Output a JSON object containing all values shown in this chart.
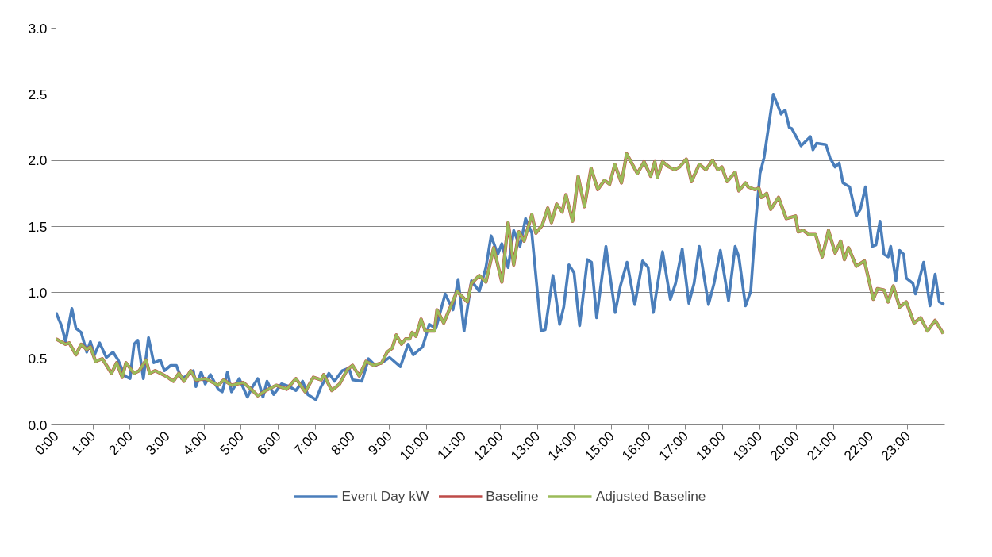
{
  "chart_data": {
    "type": "line",
    "xlim": [
      0,
      24
    ],
    "ylim": [
      0,
      3
    ],
    "xticks": [
      {
        "value": 0,
        "label": "0:00"
      },
      {
        "value": 1,
        "label": "1:00"
      },
      {
        "value": 2,
        "label": "2:00"
      },
      {
        "value": 3,
        "label": "3:00"
      },
      {
        "value": 4,
        "label": "4:00"
      },
      {
        "value": 5,
        "label": "5:00"
      },
      {
        "value": 6,
        "label": "6:00"
      },
      {
        "value": 7,
        "label": "7:00"
      },
      {
        "value": 8,
        "label": "8:00"
      },
      {
        "value": 9,
        "label": "9:00"
      },
      {
        "value": 10,
        "label": "10:00"
      },
      {
        "value": 11,
        "label": "11:00"
      },
      {
        "value": 12,
        "label": "12:00"
      },
      {
        "value": 13,
        "label": "13:00"
      },
      {
        "value": 14,
        "label": "14:00"
      },
      {
        "value": 15,
        "label": "15:00"
      },
      {
        "value": 16,
        "label": "16:00"
      },
      {
        "value": 17,
        "label": "17:00"
      },
      {
        "value": 18,
        "label": "18:00"
      },
      {
        "value": 19,
        "label": "19:00"
      },
      {
        "value": 20,
        "label": "20:00"
      },
      {
        "value": 21,
        "label": "21:00"
      },
      {
        "value": 22,
        "label": "22:00"
      },
      {
        "value": 23,
        "label": "23:00"
      }
    ],
    "yticks": [
      {
        "value": 0,
        "label": "0.0"
      },
      {
        "value": 0.5,
        "label": "0.5"
      },
      {
        "value": 1,
        "label": "1.0"
      },
      {
        "value": 1.5,
        "label": "1.5"
      },
      {
        "value": 2,
        "label": "2.0"
      },
      {
        "value": 2.5,
        "label": "2.5"
      },
      {
        "value": 3,
        "label": "3.0"
      }
    ],
    "grid": "y",
    "legend": "bottom",
    "marker": "none",
    "line_style": "solid",
    "series": [
      {
        "name": "Event Day kW",
        "color": "#4a7ebb",
        "x": [
          0,
          0.15,
          0.26,
          0.43,
          0.54,
          0.68,
          0.83,
          0.93,
          1.04,
          1.18,
          1.36,
          1.54,
          1.68,
          1.86,
          2.0,
          2.11,
          2.21,
          2.36,
          2.5,
          2.64,
          2.82,
          2.93,
          3.1,
          3.25,
          3.39,
          3.53,
          3.71,
          3.78,
          3.92,
          4.03,
          4.17,
          4.38,
          4.49,
          4.63,
          4.74,
          4.95,
          5.17,
          5.31,
          5.45,
          5.59,
          5.7,
          5.88,
          6.09,
          6.31,
          6.48,
          6.66,
          6.8,
          7.02,
          7.16,
          7.37,
          7.52,
          7.73,
          7.91,
          8.01,
          8.26,
          8.44,
          8.62,
          8.8,
          9.01,
          9.3,
          9.51,
          9.65,
          9.9,
          10.08,
          10.26,
          10.51,
          10.72,
          10.86,
          11.02,
          11.22,
          11.43,
          11.61,
          11.75,
          11.93,
          12.04,
          12.21,
          12.36,
          12.53,
          12.68,
          12.85,
          13.1,
          13.21,
          13.42,
          13.6,
          13.71,
          13.85,
          13.99,
          14.14,
          14.35,
          14.46,
          14.6,
          14.85,
          15.1,
          15.24,
          15.42,
          15.63,
          15.84,
          15.99,
          16.13,
          16.38,
          16.59,
          16.73,
          16.91,
          17.09,
          17.23,
          17.37,
          17.62,
          17.77,
          17.94,
          18.16,
          18.34,
          18.44,
          18.62,
          18.76,
          18.9,
          19.01,
          19.12,
          19.37,
          19.58,
          19.69,
          19.8,
          19.87,
          20.12,
          20.37,
          20.44,
          20.54,
          20.79,
          20.9,
          21.04,
          21.15,
          21.25,
          21.43,
          21.61,
          21.72,
          21.86,
          22.04,
          22.14,
          22.25,
          22.36,
          22.47,
          22.54,
          22.68,
          22.78,
          22.89,
          22.96,
          23.14,
          23.21,
          23.43,
          23.6,
          23.74,
          23.85,
          23.99
        ],
        "values": [
          0.85,
          0.75,
          0.63,
          0.88,
          0.73,
          0.7,
          0.55,
          0.63,
          0.53,
          0.62,
          0.51,
          0.55,
          0.49,
          0.37,
          0.35,
          0.61,
          0.64,
          0.35,
          0.66,
          0.47,
          0.49,
          0.41,
          0.45,
          0.45,
          0.35,
          0.37,
          0.41,
          0.29,
          0.4,
          0.31,
          0.38,
          0.27,
          0.25,
          0.4,
          0.25,
          0.35,
          0.21,
          0.29,
          0.35,
          0.21,
          0.33,
          0.23,
          0.31,
          0.29,
          0.26,
          0.33,
          0.23,
          0.19,
          0.29,
          0.39,
          0.33,
          0.41,
          0.43,
          0.34,
          0.33,
          0.5,
          0.45,
          0.47,
          0.51,
          0.44,
          0.61,
          0.53,
          0.59,
          0.76,
          0.73,
          0.99,
          0.87,
          1.1,
          0.71,
          1.09,
          1.01,
          1.19,
          1.43,
          1.29,
          1.37,
          1.19,
          1.47,
          1.35,
          1.56,
          1.45,
          0.71,
          0.72,
          1.13,
          0.76,
          0.89,
          1.21,
          1.15,
          0.75,
          1.25,
          1.23,
          0.81,
          1.35,
          0.85,
          1.05,
          1.23,
          0.91,
          1.24,
          1.19,
          0.85,
          1.31,
          0.95,
          1.07,
          1.33,
          0.92,
          1.07,
          1.35,
          0.91,
          1.07,
          1.32,
          0.94,
          1.35,
          1.27,
          0.9,
          1.01,
          1.55,
          1.9,
          2.02,
          2.5,
          2.35,
          2.38,
          2.25,
          2.24,
          2.11,
          2.18,
          2.08,
          2.13,
          2.12,
          2.02,
          1.95,
          1.98,
          1.83,
          1.8,
          1.58,
          1.63,
          1.8,
          1.35,
          1.36,
          1.54,
          1.29,
          1.27,
          1.35,
          1.09,
          1.32,
          1.29,
          1.11,
          1.07,
          0.99,
          1.23,
          0.9,
          1.14,
          0.93,
          0.91
        ]
      },
      {
        "name": "Baseline",
        "color": "#be4b48",
        "x": [
          0,
          0.26,
          0.36,
          0.54,
          0.68,
          0.83,
          0.93,
          1.07,
          1.25,
          1.5,
          1.64,
          1.79,
          1.89,
          2.11,
          2.25,
          2.43,
          2.53,
          2.68,
          2.96,
          3.17,
          3.32,
          3.46,
          3.64,
          3.78,
          4.03,
          4.38,
          4.53,
          4.74,
          5.06,
          5.31,
          5.45,
          5.67,
          5.95,
          6.23,
          6.48,
          6.73,
          6.95,
          7.16,
          7.23,
          7.45,
          7.66,
          7.87,
          8.01,
          8.19,
          8.37,
          8.58,
          8.8,
          8.94,
          9.08,
          9.19,
          9.33,
          9.44,
          9.55,
          9.62,
          9.72,
          9.86,
          9.97,
          10.22,
          10.29,
          10.47,
          10.83,
          11.11,
          11.22,
          11.43,
          11.61,
          11.82,
          12.04,
          12.21,
          12.36,
          12.5,
          12.64,
          12.85,
          12.96,
          13.13,
          13.28,
          13.38,
          13.52,
          13.67,
          13.77,
          13.95,
          14.1,
          14.27,
          14.45,
          14.63,
          14.81,
          14.95,
          15.09,
          15.27,
          15.41,
          15.7,
          15.88,
          16.06,
          16.17,
          16.24,
          16.38,
          16.56,
          16.7,
          16.84,
          17.02,
          17.16,
          17.37,
          17.55,
          17.73,
          17.87,
          17.98,
          18.12,
          18.34,
          18.44,
          18.62,
          18.69,
          18.87,
          18.98,
          19.05,
          19.19,
          19.3,
          19.51,
          19.72,
          19.97,
          20.04,
          20.18,
          20.33,
          20.51,
          20.69,
          20.86,
          21.04,
          21.19,
          21.29,
          21.4,
          21.61,
          21.83,
          22.07,
          22.18,
          22.36,
          22.47,
          22.61,
          22.78,
          22.96,
          23.17,
          23.35,
          23.53,
          23.74,
          23.96
        ],
        "values": [
          0.65,
          0.61,
          0.62,
          0.53,
          0.61,
          0.57,
          0.59,
          0.48,
          0.5,
          0.39,
          0.47,
          0.36,
          0.47,
          0.39,
          0.41,
          0.49,
          0.39,
          0.41,
          0.37,
          0.33,
          0.39,
          0.33,
          0.41,
          0.34,
          0.35,
          0.3,
          0.34,
          0.3,
          0.32,
          0.26,
          0.22,
          0.26,
          0.3,
          0.27,
          0.35,
          0.25,
          0.36,
          0.34,
          0.38,
          0.26,
          0.31,
          0.42,
          0.45,
          0.37,
          0.48,
          0.45,
          0.47,
          0.55,
          0.58,
          0.68,
          0.61,
          0.65,
          0.65,
          0.7,
          0.67,
          0.8,
          0.71,
          0.71,
          0.87,
          0.77,
          1.01,
          0.93,
          1.07,
          1.13,
          1.08,
          1.34,
          1.08,
          1.53,
          1.21,
          1.46,
          1.39,
          1.59,
          1.45,
          1.51,
          1.64,
          1.53,
          1.67,
          1.61,
          1.74,
          1.54,
          1.88,
          1.65,
          1.94,
          1.78,
          1.85,
          1.82,
          1.97,
          1.83,
          2.05,
          1.9,
          1.99,
          1.88,
          1.99,
          1.87,
          1.99,
          1.95,
          1.93,
          1.95,
          2.01,
          1.84,
          1.97,
          1.93,
          2.0,
          1.93,
          1.95,
          1.84,
          1.91,
          1.77,
          1.83,
          1.8,
          1.78,
          1.79,
          1.72,
          1.75,
          1.63,
          1.72,
          1.56,
          1.58,
          1.46,
          1.47,
          1.44,
          1.44,
          1.27,
          1.47,
          1.3,
          1.39,
          1.25,
          1.34,
          1.2,
          1.24,
          0.95,
          1.03,
          1.02,
          0.93,
          1.05,
          0.89,
          0.93,
          0.77,
          0.81,
          0.71,
          0.79,
          0.69
        ]
      },
      {
        "name": "Adjusted Baseline",
        "color": "#9bbb59",
        "x": [
          0,
          0.26,
          0.36,
          0.54,
          0.68,
          0.83,
          0.93,
          1.07,
          1.25,
          1.5,
          1.64,
          1.79,
          1.89,
          2.11,
          2.25,
          2.43,
          2.53,
          2.68,
          2.96,
          3.17,
          3.32,
          3.46,
          3.64,
          3.78,
          4.03,
          4.38,
          4.53,
          4.74,
          5.06,
          5.31,
          5.45,
          5.67,
          5.95,
          6.23,
          6.48,
          6.73,
          6.95,
          7.16,
          7.23,
          7.45,
          7.66,
          7.87,
          8.01,
          8.19,
          8.37,
          8.58,
          8.8,
          8.94,
          9.08,
          9.19,
          9.33,
          9.44,
          9.55,
          9.62,
          9.72,
          9.86,
          9.97,
          10.22,
          10.29,
          10.47,
          10.83,
          11.11,
          11.22,
          11.43,
          11.61,
          11.82,
          12.04,
          12.21,
          12.36,
          12.5,
          12.64,
          12.85,
          12.96,
          13.13,
          13.28,
          13.38,
          13.52,
          13.67,
          13.77,
          13.95,
          14.1,
          14.27,
          14.45,
          14.63,
          14.81,
          14.95,
          15.09,
          15.27,
          15.41,
          15.7,
          15.88,
          16.06,
          16.17,
          16.24,
          16.38,
          16.56,
          16.7,
          16.84,
          17.02,
          17.16,
          17.37,
          17.55,
          17.73,
          17.87,
          17.98,
          18.12,
          18.34,
          18.44,
          18.62,
          18.69,
          18.87,
          18.98,
          19.05,
          19.19,
          19.3,
          19.51,
          19.72,
          19.97,
          20.04,
          20.18,
          20.33,
          20.51,
          20.69,
          20.86,
          21.04,
          21.19,
          21.29,
          21.4,
          21.61,
          21.83,
          22.07,
          22.18,
          22.36,
          22.47,
          22.61,
          22.78,
          22.96,
          23.17,
          23.35,
          23.53,
          23.74,
          23.96
        ],
        "values": [
          0.65,
          0.61,
          0.62,
          0.53,
          0.61,
          0.57,
          0.59,
          0.48,
          0.5,
          0.39,
          0.47,
          0.36,
          0.47,
          0.39,
          0.41,
          0.49,
          0.39,
          0.41,
          0.37,
          0.33,
          0.39,
          0.33,
          0.41,
          0.34,
          0.35,
          0.3,
          0.34,
          0.3,
          0.32,
          0.26,
          0.22,
          0.26,
          0.3,
          0.27,
          0.35,
          0.25,
          0.36,
          0.34,
          0.38,
          0.26,
          0.31,
          0.42,
          0.45,
          0.37,
          0.48,
          0.45,
          0.47,
          0.55,
          0.58,
          0.68,
          0.61,
          0.65,
          0.65,
          0.7,
          0.67,
          0.8,
          0.71,
          0.71,
          0.87,
          0.77,
          1.01,
          0.93,
          1.07,
          1.13,
          1.08,
          1.34,
          1.08,
          1.53,
          1.21,
          1.46,
          1.39,
          1.59,
          1.45,
          1.51,
          1.64,
          1.53,
          1.67,
          1.61,
          1.74,
          1.54,
          1.88,
          1.65,
          1.94,
          1.78,
          1.85,
          1.82,
          1.97,
          1.83,
          2.05,
          1.9,
          1.99,
          1.88,
          1.99,
          1.87,
          1.99,
          1.95,
          1.93,
          1.95,
          2.01,
          1.84,
          1.97,
          1.93,
          2.0,
          1.93,
          1.95,
          1.84,
          1.91,
          1.77,
          1.83,
          1.8,
          1.78,
          1.79,
          1.72,
          1.75,
          1.63,
          1.72,
          1.56,
          1.58,
          1.46,
          1.47,
          1.44,
          1.44,
          1.27,
          1.47,
          1.3,
          1.39,
          1.25,
          1.34,
          1.2,
          1.24,
          0.95,
          1.03,
          1.02,
          0.93,
          1.05,
          0.89,
          0.93,
          0.77,
          0.81,
          0.71,
          0.79,
          0.69
        ]
      }
    ]
  }
}
